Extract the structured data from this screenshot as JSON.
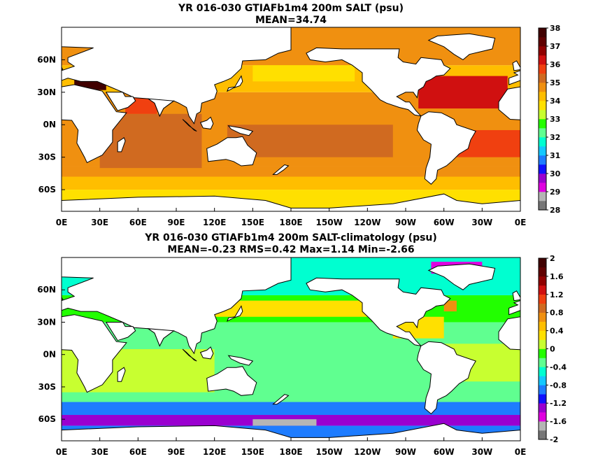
{
  "chart_data": [
    {
      "type": "heatmap",
      "title": "YR 016-030 GTIAFb1m4 200m SALT (psu)",
      "subtitle": "MEAN=34.74",
      "x_tick_labels": [
        "0E",
        "30E",
        "60E",
        "90E",
        "120E",
        "150E",
        "180E",
        "150W",
        "120W",
        "90W",
        "60W",
        "30W",
        "0E"
      ],
      "y_tick_labels": [
        "60N",
        "30N",
        "0N",
        "30S",
        "60S"
      ],
      "y_tick_values": [
        60,
        30,
        0,
        -30,
        -60
      ],
      "xlim": [
        0,
        360
      ],
      "ylim": [
        -80,
        90
      ],
      "colorbar_labels": [
        "28",
        "29",
        "30",
        "31",
        "32",
        "33",
        "34",
        "35",
        "36",
        "37",
        "38"
      ],
      "colorbar_colors": [
        "#777777",
        "#b5b5b5",
        "#e000e0",
        "#9a00d0",
        "#1010ff",
        "#1e7cff",
        "#14c8ff",
        "#00ffd0",
        "#60ff90",
        "#22ff00",
        "#c8ff30",
        "#ffe000",
        "#ffbe00",
        "#f09010",
        "#d06a20",
        "#f04010",
        "#d01010",
        "#900000",
        "#600000",
        "#400000"
      ],
      "colorbar_range": [
        28,
        38
      ],
      "mean": 34.74,
      "regions": [
        {
          "lon": [
            0,
            360
          ],
          "lat": [
            -80,
            -60
          ],
          "value": 33.9
        },
        {
          "lon": [
            0,
            360
          ],
          "lat": [
            -60,
            -48
          ],
          "value": 34.1
        },
        {
          "lon": [
            0,
            360
          ],
          "lat": [
            -48,
            -38
          ],
          "value": 34.5
        },
        {
          "lon": [
            0,
            360
          ],
          "lat": [
            -38,
            30
          ],
          "value": 34.8
        },
        {
          "lon": [
            130,
            260
          ],
          "lat": [
            -30,
            0
          ],
          "value": 35.0
        },
        {
          "lon": [
            170,
            250
          ],
          "lat": [
            -25,
            -5
          ],
          "value": 35.4
        },
        {
          "lon": [
            30,
            110
          ],
          "lat": [
            -40,
            10
          ],
          "value": 35.1
        },
        {
          "lon": [
            300,
            360
          ],
          "lat": [
            -30,
            -5
          ],
          "value": 35.5
        },
        {
          "lon": [
            50,
            75
          ],
          "lat": [
            10,
            25
          ],
          "value": 35.9
        },
        {
          "lon": [
            0,
            360
          ],
          "lat": [
            30,
            55
          ],
          "value": 34.4
        },
        {
          "lon": [
            150,
            230
          ],
          "lat": [
            40,
            60
          ],
          "value": 33.8
        },
        {
          "lon": [
            280,
            350
          ],
          "lat": [
            15,
            45
          ],
          "value": 36.3
        },
        {
          "lon": [
            0,
            360
          ],
          "lat": [
            55,
            90
          ],
          "value": 34.7
        },
        {
          "lon": [
            10,
            35
          ],
          "lat": [
            32,
            42
          ],
          "value": 37.7
        }
      ]
    },
    {
      "type": "heatmap",
      "title": "YR 016-030 GTIAFb1m4 200m SALT-climatology (psu)",
      "subtitle": "MEAN=-0.23   RMS=0.42   Max=1.14   Min=-2.66",
      "x_tick_labels": [
        "0E",
        "30E",
        "60E",
        "90E",
        "120E",
        "150E",
        "180E",
        "150W",
        "120W",
        "90W",
        "60W",
        "30W",
        "0E"
      ],
      "y_tick_labels": [
        "60N",
        "30N",
        "0N",
        "30S",
        "60S"
      ],
      "y_tick_values": [
        60,
        30,
        0,
        -30,
        -60
      ],
      "xlim": [
        0,
        360
      ],
      "ylim": [
        -80,
        90
      ],
      "colorbar_labels": [
        "2",
        "1.6",
        "1.2",
        "0.8",
        "0.4",
        "0",
        "-0.4",
        "-0.8",
        "-1.2",
        "-1.6",
        "-2"
      ],
      "colorbar_colors": [
        "#777777",
        "#b5b5b5",
        "#e000e0",
        "#9a00d0",
        "#1010ff",
        "#1e7cff",
        "#14c8ff",
        "#00ffd0",
        "#60ff90",
        "#22ff00",
        "#c8ff30",
        "#ffe000",
        "#ffbe00",
        "#f09010",
        "#d06a20",
        "#f04010",
        "#d01010",
        "#900000",
        "#600000",
        "#400000"
      ],
      "colorbar_range": [
        -2,
        2
      ],
      "mean": -0.23,
      "rms": 0.42,
      "max": 1.14,
      "min": -2.66,
      "regions": [
        {
          "lon": [
            0,
            360
          ],
          "lat": [
            -80,
            -66
          ],
          "value": -0.85
        },
        {
          "lon": [
            0,
            360
          ],
          "lat": [
            -66,
            -56
          ],
          "value": -1.35
        },
        {
          "lon": [
            150,
            200
          ],
          "lat": [
            -66,
            -60
          ],
          "value": -1.7
        },
        {
          "lon": [
            0,
            360
          ],
          "lat": [
            -56,
            -44
          ],
          "value": -0.9
        },
        {
          "lon": [
            0,
            360
          ],
          "lat": [
            -44,
            30
          ],
          "value": -0.35
        },
        {
          "lon": [
            0,
            120
          ],
          "lat": [
            -35,
            5
          ],
          "value": 0.1
        },
        {
          "lon": [
            300,
            360
          ],
          "lat": [
            -25,
            10
          ],
          "value": 0.05
        },
        {
          "lon": [
            0,
            360
          ],
          "lat": [
            30,
            55
          ],
          "value": -0.15
        },
        {
          "lon": [
            120,
            250
          ],
          "lat": [
            35,
            50
          ],
          "value": 0.2
        },
        {
          "lon": [
            260,
            300
          ],
          "lat": [
            15,
            35
          ],
          "value": 0.25
        },
        {
          "lon": [
            0,
            360
          ],
          "lat": [
            55,
            90
          ],
          "value": -0.5
        },
        {
          "lon": [
            290,
            330
          ],
          "lat": [
            75,
            86
          ],
          "value": -1.5
        },
        {
          "lon": [
            300,
            310
          ],
          "lat": [
            40,
            50
          ],
          "value": 0.6
        }
      ]
    }
  ]
}
